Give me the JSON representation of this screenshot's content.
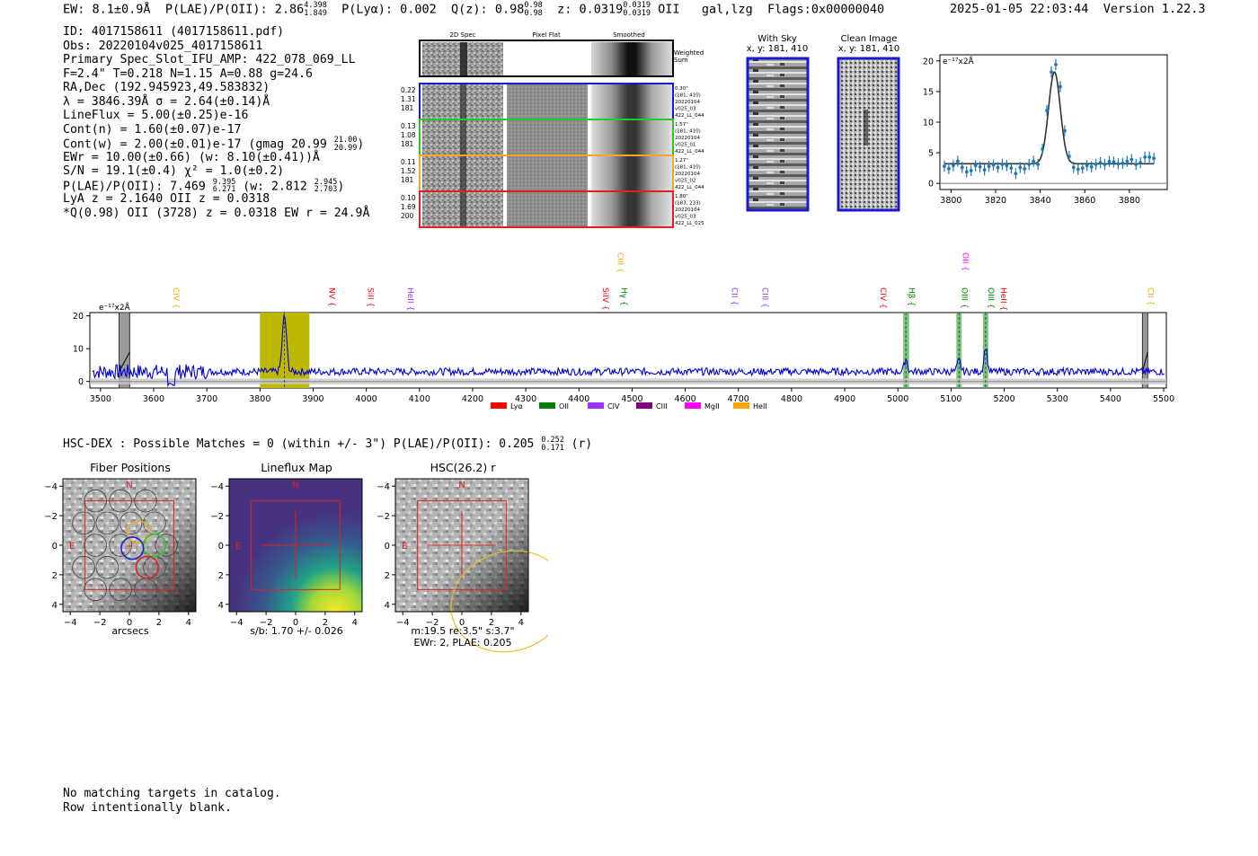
{
  "header": {
    "ew": "EW: 8.1±0.9Å",
    "plae_label": "P(LAE)/P(OII): 2.86",
    "plae_hi": "4.398",
    "plae_lo": "1.849",
    "plya": "P(Lyα): 0.002",
    "qz_label": "Q(z): 0.98",
    "qz_hi": "0.98",
    "qz_lo": "0.98",
    "z_label": "z: 0.0319",
    "z_hi": "0.0319",
    "z_lo": "0.0319",
    "z_line": "OII",
    "classes": "gal,lzg",
    "flags": "Flags:0x00000040",
    "timestamp": "2025-01-05 22:03:44",
    "version": "Version 1.22.3"
  },
  "info": {
    "id": "ID: 4017158611 (4017158611.pdf)",
    "obs": "Obs: 20220104v025_4017158611",
    "primary": "Primary Spec_Slot_IFU_AMP: 422_078_069_LL",
    "fiber": "F=2.4\"  T=0.218  N=1.15  A=0.88  g=24.6",
    "radec": "RA,Dec (192.945923,49.583832)",
    "lambda": "λ = 3846.39Å  σ = 2.64(±0.14)Å",
    "lineflux": "LineFlux = 5.00(±0.25)e-16",
    "contn": "Cont(n) = 1.60(±0.07)e-17",
    "contw": "Cont(w) = 2.00(±0.01)e-17 (gmag 20.99",
    "contw_hi": "21.00",
    "contw_lo": "20.99",
    "contw_end": ")",
    "ewr": "EWr = 10.00(±0.66) (w: 8.10(±0.41))Å",
    "sn": "S/N = 19.1(±0.4)  χ² = 1.0(±0.2)",
    "plae": "P(LAE)/P(OII): 7.469",
    "plae_hi": "9.395",
    "plae_lo": "6.271",
    "plae_w": "(w: 2.812",
    "plae_w_hi": "2.945",
    "plae_w_lo": "2.703",
    "plae_w_end": ")",
    "lya": "LyA z = 2.1640  OII z = 0.0318",
    "qline": "*Q(0.98) OII (3728) z = 0.0318  EW r = 24.9Å"
  },
  "cutouts": {
    "col_titles": [
      "2D Spec",
      "Pixel Flat",
      "Smoothed"
    ],
    "weighted_label": "Weighted\nSum",
    "rows": [
      {
        "left": [
          "0.22",
          "1.31",
          "181"
        ],
        "right": [
          "0.30\"",
          "(181, 410)",
          "20220104",
          "v025_03",
          "422_LL_044"
        ],
        "color": "#1a1acc"
      },
      {
        "left": [
          "0.13",
          "1.08",
          "181"
        ],
        "right": [
          "1.57\"",
          "(181, 410)",
          "20220104",
          "v025_01",
          "422_LL_044"
        ],
        "color": "#22cc22"
      },
      {
        "left": [
          "0.11",
          "1.52",
          "181"
        ],
        "right": [
          "1.27\"",
          "(181, 410)",
          "20220104",
          "v025_02",
          "422_LL_044"
        ],
        "color": "#f5a623"
      },
      {
        "left": [
          "0.10",
          "1.69",
          "200"
        ],
        "right": [
          "1.80\"",
          "(183, 233)",
          "20220104",
          "v025_03",
          "422_LL_025"
        ],
        "color": "#e02020"
      }
    ]
  },
  "with_sky": {
    "title": "With Sky",
    "coords": "x, y: 181, 410"
  },
  "clean_image": {
    "title": "Clean Image",
    "coords": "x, y: 181, 410"
  },
  "hsc_line": {
    "text": "HSC-DEX : Possible Matches = 0 (within +/- 3\")  P(LAE)/P(OII): 0.205",
    "hi": "0.252",
    "lo": "0.171",
    "band": "(r)"
  },
  "maps": {
    "fiber_title": "Fiber Positions",
    "lineflux_title": "Lineflux Map",
    "hsc_title": "HSC(26.2) r",
    "fiber_xlabel": "arcsecs",
    "lineflux_xlabel": "s/b: 1.70 +/- 0.026",
    "hsc_xlabel1": "m:19.5   re:3.5\"   s:3.7\"",
    "hsc_xlabel2": "EWr: 2, PLAE: 0.205",
    "north": "N",
    "east": "E",
    "ticks": [
      "−4",
      "−2",
      "0",
      "2",
      "4"
    ]
  },
  "bottom": {
    "line1": "No matching targets in catalog.",
    "line2": "Row intentionally blank."
  },
  "legend": [
    {
      "label": "Lyα",
      "color": "#ff0000"
    },
    {
      "label": "OII",
      "color": "#008000"
    },
    {
      "label": "CIV",
      "color": "#9b30ff"
    },
    {
      "label": "CIII",
      "color": "#800080"
    },
    {
      "label": "MgII",
      "color": "#ff00ff"
    },
    {
      "label": "HeII",
      "color": "#ffa500"
    }
  ],
  "line_labels": [
    {
      "label": "CIV",
      "x": 3632,
      "color": "#ffa500",
      "row": 1
    },
    {
      "label": "NV",
      "x": 3925,
      "color": "#ff0000",
      "row": 1
    },
    {
      "label": "SiII",
      "x": 3998,
      "color": "#ff0000",
      "row": 1
    },
    {
      "label": "HeII",
      "x": 4073,
      "color": "#9b30ff",
      "row": 1
    },
    {
      "label": "SiIV",
      "x": 4440,
      "color": "#ff0000",
      "row": 1
    },
    {
      "label": "CIII",
      "x": 4468,
      "color": "#ffa500",
      "row": 0
    },
    {
      "label": "Hγ",
      "x": 4475,
      "color": "#008000",
      "row": 1
    },
    {
      "label": "CII",
      "x": 4683,
      "color": "#9b30ff",
      "row": 1
    },
    {
      "label": "CIII",
      "x": 4740,
      "color": "#9b30ff",
      "row": 1
    },
    {
      "label": "CIV",
      "x": 4962,
      "color": "#ff0000",
      "row": 1
    },
    {
      "label": "Hβ",
      "x": 5016,
      "color": "#008000",
      "row": 1
    },
    {
      "label": "OII",
      "x": 5117,
      "color": "#ff00ff",
      "row": 0
    },
    {
      "label": "OIII",
      "x": 5115,
      "color": "#008000",
      "row": 1
    },
    {
      "label": "OIII",
      "x": 5165,
      "color": "#008000",
      "row": 1
    },
    {
      "label": "HeII",
      "x": 5189,
      "color": "#ff0000",
      "row": 1
    },
    {
      "label": "CII",
      "x": 5465,
      "color": "#ffa500",
      "row": 1
    }
  ],
  "chart_data": [
    {
      "type": "scatter",
      "title": "",
      "ylabel": "e⁻¹⁷x2Å",
      "xlim": [
        3795,
        3897
      ],
      "ylim": [
        -1,
        21
      ],
      "xticks": [
        3800,
        3820,
        3840,
        3860,
        3880
      ],
      "yticks": [
        0,
        5,
        10,
        15,
        20
      ],
      "fit_model": {
        "type": "gaussian",
        "center": 3846.39,
        "sigma": 2.64,
        "amplitude": 15.0,
        "continuum": 3.2
      },
      "x": [
        3797,
        3799,
        3801,
        3803,
        3805,
        3807,
        3809,
        3811,
        3813,
        3815,
        3817,
        3819,
        3821,
        3823,
        3825,
        3827,
        3829,
        3831,
        3833,
        3835,
        3837,
        3839,
        3841,
        3843,
        3845,
        3847,
        3849,
        3851,
        3853,
        3855,
        3857,
        3859,
        3861,
        3863,
        3865,
        3867,
        3869,
        3871,
        3873,
        3875,
        3877,
        3879,
        3881,
        3883,
        3885,
        3887,
        3889,
        3891
      ],
      "y": [
        2.8,
        2.4,
        2.9,
        3.6,
        2.6,
        1.9,
        2.1,
        2.9,
        2.7,
        2.2,
        2.8,
        3.0,
        2.6,
        3.1,
        2.9,
        2.5,
        1.6,
        2.6,
        2.4,
        3.1,
        3.6,
        3.1,
        5.6,
        11.9,
        18.2,
        19.4,
        15.8,
        8.6,
        4.4,
        2.6,
        2.3,
        2.5,
        2.9,
        2.7,
        3.1,
        3.4,
        3.1,
        3.6,
        3.5,
        3.2,
        3.3,
        3.6,
        3.9,
        3.1,
        3.4,
        4.3,
        4.3,
        4.1
      ],
      "yerr": 0.9
    },
    {
      "type": "line",
      "title": "",
      "ylabel": "e⁻¹⁷x2Å",
      "xlim": [
        3480,
        5505
      ],
      "ylim": [
        -2,
        21
      ],
      "xticks": [
        3500,
        3600,
        3700,
        3800,
        3900,
        4000,
        4100,
        4200,
        4300,
        4400,
        4500,
        4600,
        4700,
        4800,
        4900,
        5000,
        5100,
        5200,
        5300,
        5400,
        5500
      ],
      "yticks": [
        0,
        10,
        20
      ],
      "highlight_band": [
        3800,
        3893
      ],
      "emission_peaks": [
        {
          "x": 3846,
          "y": 20.0
        },
        {
          "x": 5015,
          "y": 7.0
        },
        {
          "x": 5115,
          "y": 6.5
        },
        {
          "x": 5165,
          "y": 10.5
        }
      ],
      "continuum_level": 3.0,
      "green_bands": [
        [
          5010,
          5021
        ],
        [
          5110,
          5120
        ],
        [
          5160,
          5170
        ]
      ],
      "gray_bands": [
        [
          3535,
          3555
        ],
        [
          5460,
          5470
        ]
      ]
    }
  ]
}
